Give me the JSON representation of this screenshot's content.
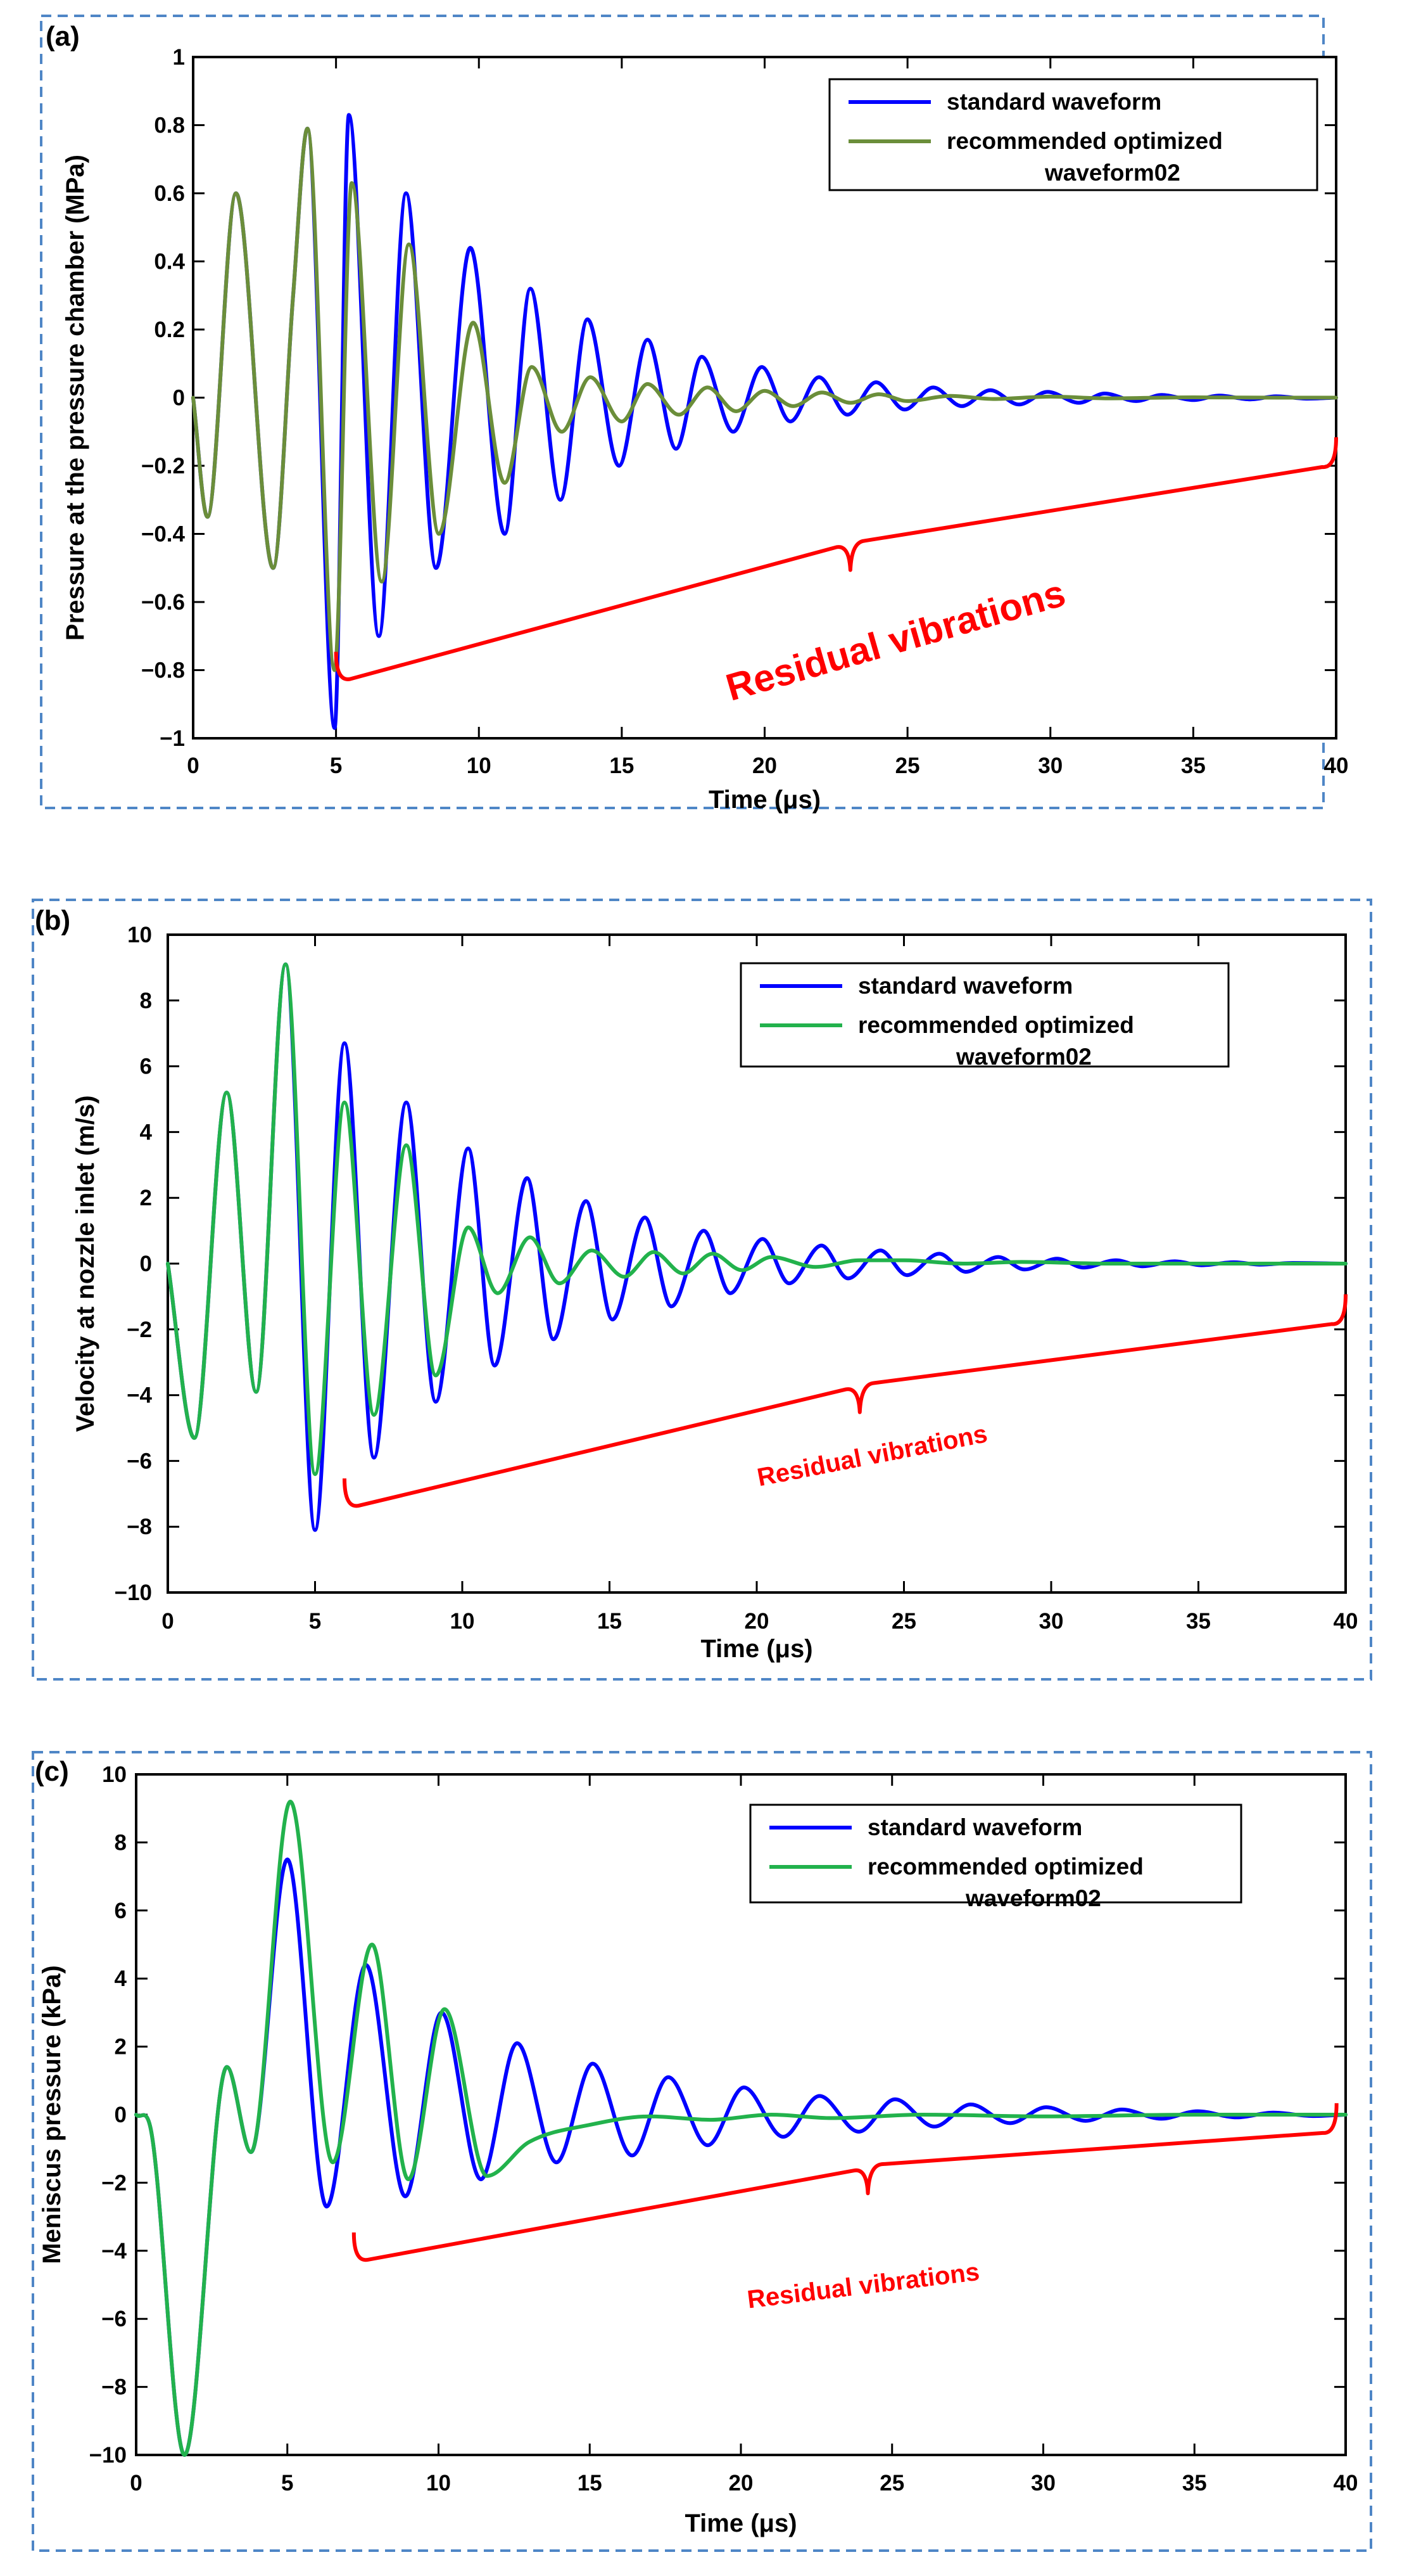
{
  "chart_data": [
    {
      "type": "line",
      "panel_label": "(a)",
      "xlabel": "Time (μs)",
      "ylabel": "Pressure at the pressure chamber (MPa)",
      "xlim": [
        0,
        40
      ],
      "ylim": [
        -1,
        1
      ],
      "xticks": [
        0,
        5,
        10,
        15,
        20,
        25,
        30,
        35,
        40
      ],
      "xtick_labels": [
        "0",
        "5",
        "10",
        "15",
        "20",
        "25",
        "30",
        "35",
        "40"
      ],
      "yticks": [
        -1,
        -0.8,
        -0.6,
        -0.4,
        -0.2,
        0,
        0.2,
        0.4,
        0.6,
        0.8,
        1
      ],
      "ytick_labels": [
        "−1",
        "−0.8",
        "−0.6",
        "−0.4",
        "−0.2",
        "0",
        "0.2",
        "0.4",
        "0.6",
        "0.8",
        "1"
      ],
      "grid": false,
      "legend_position": "top-right",
      "series": [
        {
          "name": "standard waveform",
          "color": "#0000ff",
          "legend_lines": [
            "standard waveform"
          ],
          "x": [
            0,
            0.5,
            1.5,
            2.8,
            3.5,
            4.0,
            4.95,
            5.45,
            6.5,
            7.45,
            8.5,
            9.7,
            10.9,
            11.8,
            12.85,
            13.8,
            14.9,
            15.9,
            16.9,
            17.8,
            18.9,
            19.9,
            20.9,
            21.9,
            22.9,
            23.9,
            24.9,
            25.9,
            26.9,
            27.9,
            28.9,
            29.9,
            31.0,
            31.9,
            33.0,
            33.9,
            35.0,
            35.9,
            37.0,
            37.9,
            39.0,
            40.0
          ],
          "y": [
            0,
            -0.35,
            0.6,
            -0.5,
            0.3,
            0.79,
            -0.97,
            0.83,
            -0.7,
            0.6,
            -0.5,
            0.44,
            -0.4,
            0.32,
            -0.3,
            0.23,
            -0.2,
            0.17,
            -0.15,
            0.12,
            -0.1,
            0.09,
            -0.07,
            0.06,
            -0.05,
            0.045,
            -0.035,
            0.03,
            -0.025,
            0.022,
            -0.02,
            0.017,
            -0.015,
            0.012,
            -0.01,
            0.008,
            -0.007,
            0.006,
            -0.005,
            0.004,
            -0.003,
            0
          ]
        },
        {
          "name": "recommended optimized waveform02",
          "color": "#6b8e3a",
          "legend_lines": [
            "recommended optimized",
            "waveform02"
          ],
          "x": [
            0,
            0.5,
            1.5,
            2.8,
            3.5,
            4.0,
            4.95,
            5.55,
            6.6,
            7.55,
            8.6,
            9.8,
            10.9,
            11.85,
            12.9,
            13.9,
            15.0,
            15.9,
            17.0,
            18.0,
            19.0,
            20.0,
            21.0,
            22.0,
            23.0,
            24.0,
            25.0,
            26.5,
            28.0,
            30.0,
            32.0,
            35.0,
            38.0,
            40.0
          ],
          "y": [
            0,
            -0.35,
            0.6,
            -0.5,
            0.3,
            0.79,
            -0.8,
            0.63,
            -0.54,
            0.45,
            -0.4,
            0.22,
            -0.25,
            0.09,
            -0.1,
            0.06,
            -0.07,
            0.04,
            -0.05,
            0.03,
            -0.04,
            0.02,
            -0.025,
            0.015,
            -0.015,
            0.01,
            -0.01,
            0.005,
            -0.004,
            0.003,
            -0.002,
            0.001,
            0,
            0
          ]
        }
      ],
      "annotations": [
        {
          "type": "brace",
          "text": "Residual vibrations",
          "x_start": 5.0,
          "x_end": 40.0,
          "x_tip": 23.0,
          "y_start": -0.83,
          "y_end": -0.2,
          "y_tip": -0.52
        }
      ]
    },
    {
      "type": "line",
      "panel_label": "(b)",
      "xlabel": "Time (μs)",
      "ylabel": "Velocity at nozzle inlet (m/s)",
      "xlim": [
        0,
        40
      ],
      "ylim": [
        -10,
        10
      ],
      "xticks": [
        0,
        5,
        10,
        15,
        20,
        25,
        30,
        35,
        40
      ],
      "xtick_labels": [
        "0",
        "5",
        "10",
        "15",
        "20",
        "25",
        "30",
        "35",
        "40"
      ],
      "yticks": [
        -10,
        -8,
        -6,
        -4,
        -2,
        0,
        2,
        4,
        6,
        8,
        10
      ],
      "ytick_labels": [
        "−10",
        "−8",
        "−6",
        "−4",
        "−2",
        "0",
        "2",
        "4",
        "6",
        "8",
        "10"
      ],
      "grid": false,
      "legend_position": "top-right",
      "series": [
        {
          "name": "standard waveform",
          "color": "#0000ff",
          "legend_lines": [
            "standard waveform"
          ],
          "x": [
            0,
            0.9,
            2.0,
            3.0,
            4.0,
            5.0,
            6.0,
            7.0,
            8.1,
            9.1,
            10.2,
            11.1,
            12.2,
            13.1,
            14.2,
            15.1,
            16.2,
            17.1,
            18.2,
            19.1,
            20.2,
            21.1,
            22.2,
            23.1,
            24.2,
            25.1,
            26.2,
            27.1,
            28.2,
            29.1,
            30.2,
            31.1,
            32.2,
            33.1,
            34.2,
            35.1,
            36.2,
            37.1,
            38.2,
            40.0
          ],
          "y": [
            0,
            -5.3,
            5.2,
            -3.9,
            9.1,
            -8.1,
            6.7,
            -5.9,
            4.9,
            -4.2,
            3.5,
            -3.1,
            2.6,
            -2.3,
            1.9,
            -1.7,
            1.4,
            -1.3,
            1.0,
            -0.9,
            0.75,
            -0.6,
            0.55,
            -0.45,
            0.4,
            -0.35,
            0.3,
            -0.25,
            0.2,
            -0.18,
            0.15,
            -0.12,
            0.1,
            -0.08,
            0.07,
            -0.05,
            0.04,
            -0.03,
            0.02,
            0
          ]
        },
        {
          "name": "recommended optimized waveform02",
          "color": "#22b24c",
          "legend_lines": [
            "recommended optimized",
            "waveform02"
          ],
          "x": [
            0,
            0.9,
            2.0,
            3.0,
            4.0,
            5.0,
            6.0,
            7.0,
            8.1,
            9.1,
            10.2,
            11.2,
            12.3,
            13.3,
            14.4,
            15.5,
            16.5,
            17.5,
            18.5,
            19.5,
            20.5,
            22.0,
            23.5,
            25.0,
            27.0,
            29.0,
            32.0,
            36.0,
            40.0
          ],
          "y": [
            0,
            -5.3,
            5.2,
            -3.9,
            9.1,
            -6.4,
            4.9,
            -4.6,
            3.6,
            -3.4,
            1.1,
            -0.9,
            0.8,
            -0.6,
            0.4,
            -0.4,
            0.35,
            -0.3,
            0.3,
            -0.2,
            0.2,
            -0.1,
            0.1,
            0.1,
            0.0,
            0.05,
            0.0,
            0.0,
            0.0
          ]
        }
      ],
      "annotations": [
        {
          "type": "brace",
          "text": "Residual vibrations",
          "x_start": 6.0,
          "x_end": 40.0,
          "x_tip": 23.5,
          "y_start": -7.4,
          "y_end": -1.8,
          "y_tip": -4.5
        }
      ]
    },
    {
      "type": "line",
      "panel_label": "(c)",
      "xlabel": "Time (μs)",
      "ylabel": "Meniscus pressure (kPa)",
      "xlim": [
        0,
        40
      ],
      "ylim": [
        -10,
        10
      ],
      "xticks": [
        0,
        5,
        10,
        15,
        20,
        25,
        30,
        35,
        40
      ],
      "xtick_labels": [
        "0",
        "5",
        "10",
        "15",
        "20",
        "25",
        "30",
        "35",
        "40"
      ],
      "yticks": [
        -10,
        -8,
        -6,
        -4,
        -2,
        0,
        2,
        4,
        6,
        8,
        10
      ],
      "ytick_labels": [
        "−10",
        "−8",
        "−6",
        "−4",
        "−2",
        "0",
        "2",
        "4",
        "6",
        "8",
        "10"
      ],
      "grid": false,
      "legend_position": "top-right",
      "series": [
        {
          "name": "standard waveform",
          "color": "#0000ff",
          "legend_lines": [
            "standard waveform"
          ],
          "x": [
            0,
            0.5,
            1.6,
            3.0,
            3.8,
            5.0,
            6.3,
            7.6,
            8.9,
            10.1,
            11.4,
            12.6,
            13.9,
            15.1,
            16.4,
            17.6,
            18.9,
            20.1,
            21.4,
            22.6,
            23.9,
            25.1,
            26.4,
            27.6,
            28.9,
            30.1,
            31.4,
            32.6,
            33.9,
            35.1,
            36.4,
            37.6,
            38.9,
            40.0
          ],
          "y": [
            0,
            -0.5,
            -10.0,
            1.4,
            -1.1,
            7.5,
            -2.7,
            4.4,
            -2.4,
            3.0,
            -1.9,
            2.1,
            -1.4,
            1.5,
            -1.2,
            1.1,
            -0.9,
            0.8,
            -0.65,
            0.55,
            -0.5,
            0.45,
            -0.35,
            0.3,
            -0.25,
            0.22,
            -0.18,
            0.15,
            -0.12,
            0.1,
            -0.08,
            0.06,
            -0.04,
            0
          ]
        },
        {
          "name": "recommended optimized waveform02",
          "color": "#22b24c",
          "legend_lines": [
            "recommended optimized",
            "waveform02"
          ],
          "x": [
            0,
            0.5,
            1.6,
            3.0,
            3.8,
            5.1,
            6.5,
            7.8,
            9.0,
            10.2,
            11.6,
            13.0,
            15.0,
            17.0,
            19.0,
            21.0,
            23.0,
            26.0,
            30.0,
            35.0,
            40.0
          ],
          "y": [
            0,
            -0.5,
            -10.0,
            1.4,
            -1.1,
            9.2,
            -1.4,
            5.0,
            -1.9,
            3.1,
            -1.8,
            -0.8,
            -0.3,
            -0.05,
            -0.15,
            0.0,
            -0.1,
            0.0,
            -0.05,
            0.0,
            0.0
          ]
        }
      ],
      "annotations": [
        {
          "type": "brace",
          "text": "Residual vibrations",
          "x_start": 7.2,
          "x_end": 39.7,
          "x_tip": 24.2,
          "y_start": -4.3,
          "y_end": -0.5,
          "y_tip": -2.5
        }
      ]
    }
  ]
}
